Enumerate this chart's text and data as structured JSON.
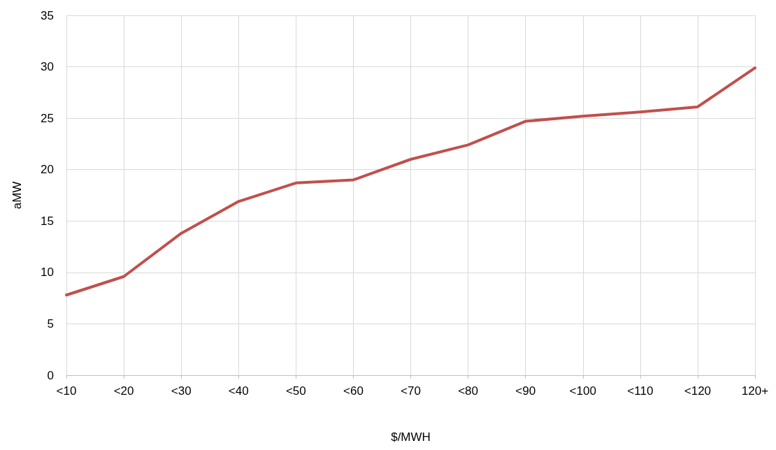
{
  "chart_data": {
    "type": "line",
    "xlabel": "$/MWH",
    "ylabel": "aMW",
    "categories": [
      "<10",
      "<20",
      "<30",
      "<40",
      "<50",
      "<60",
      "<70",
      "<80",
      "<90",
      "<100",
      "<110",
      "<120",
      "120+"
    ],
    "series": [
      {
        "color": "#c0504d",
        "values": [
          7.8,
          9.6,
          13.8,
          16.9,
          18.7,
          19.0,
          21.0,
          22.4,
          24.7,
          25.2,
          25.6,
          26.1,
          29.9
        ]
      }
    ],
    "ylim": [
      0,
      35
    ],
    "yticks": [
      0,
      5,
      10,
      15,
      20,
      25,
      30,
      35
    ],
    "grid": true,
    "legend": false,
    "marker": "none",
    "line_style": "solid"
  }
}
